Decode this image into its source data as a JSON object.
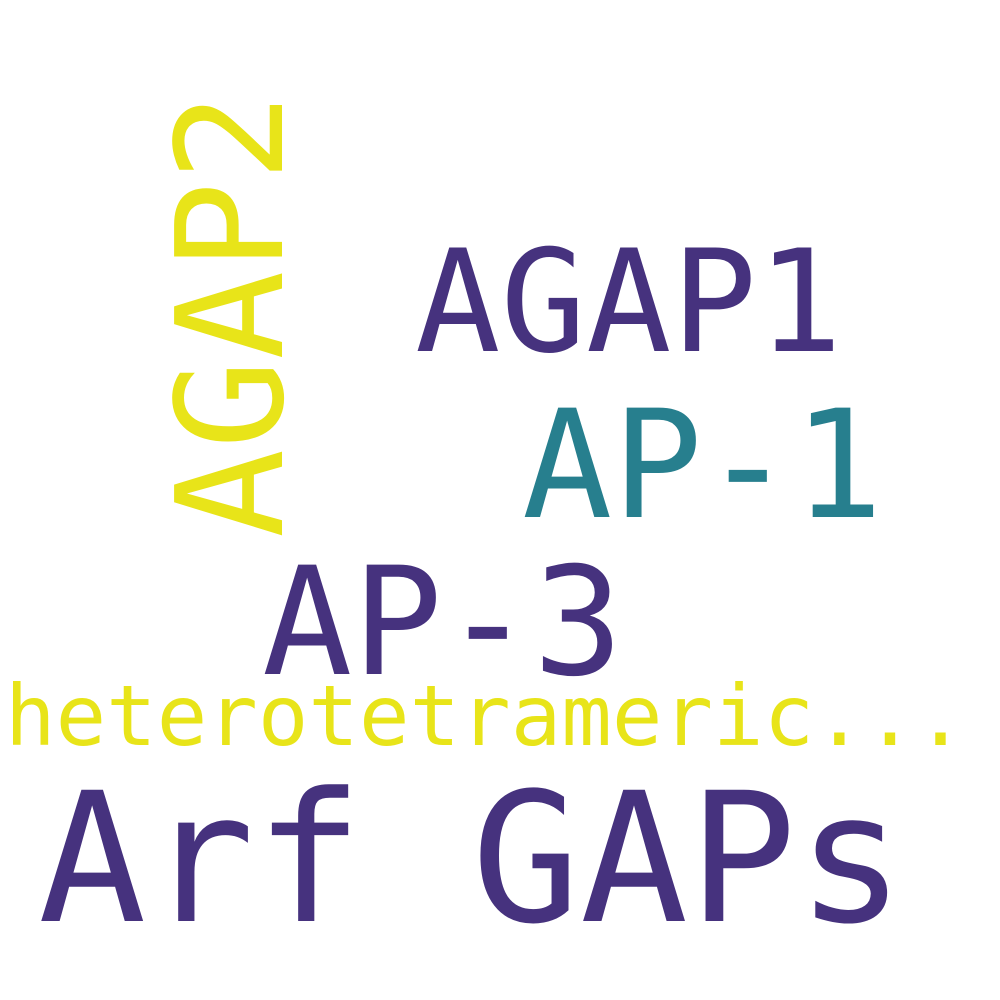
{
  "words": [
    {
      "text": "Arf GAPs",
      "color": "#46327e"
    },
    {
      "text": "AGAP1",
      "color": "#46327e"
    },
    {
      "text": "AP-1",
      "color": "#277f8e"
    },
    {
      "text": "AP-3",
      "color": "#46327e"
    },
    {
      "text": "heterotetrameric...",
      "color": "#e8e419"
    },
    {
      "text": "AGAP2",
      "color": "#e8e419"
    }
  ]
}
